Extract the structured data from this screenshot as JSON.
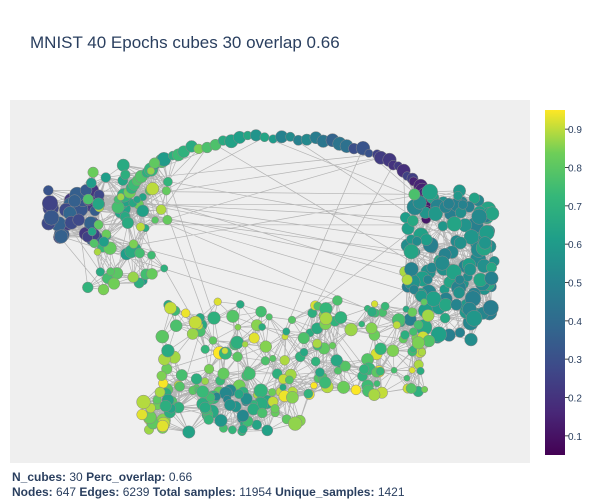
{
  "chart_data": {
    "type": "scatter",
    "title": "MNIST 40 Epochs cubes 30 overlap 0.66",
    "colorscale": "Viridis",
    "colorbar": {
      "range": [
        0.05,
        0.95
      ],
      "ticks": [
        "0.1",
        "0.2",
        "0.3",
        "0.4",
        "0.5",
        "0.6",
        "0.7",
        "0.8",
        "0.9"
      ]
    },
    "grid": false,
    "legend": false,
    "node_count": 647,
    "edge_count": 6239
  },
  "footer": {
    "line1": [
      {
        "label": "N_cubes:",
        "value": "30"
      },
      {
        "label": "Perc_overlap:",
        "value": "0.66"
      }
    ],
    "line2": [
      {
        "label": "Nodes:",
        "value": "647"
      },
      {
        "label": "Edges:",
        "value": "6239"
      },
      {
        "label": "Total samples:",
        "value": "11954"
      },
      {
        "label": "Unique_samples:",
        "value": "1421"
      }
    ]
  },
  "colors": {
    "plot_bg": "#efefef",
    "edge": "#b4b4b4",
    "text": "#2a3f5f"
  }
}
